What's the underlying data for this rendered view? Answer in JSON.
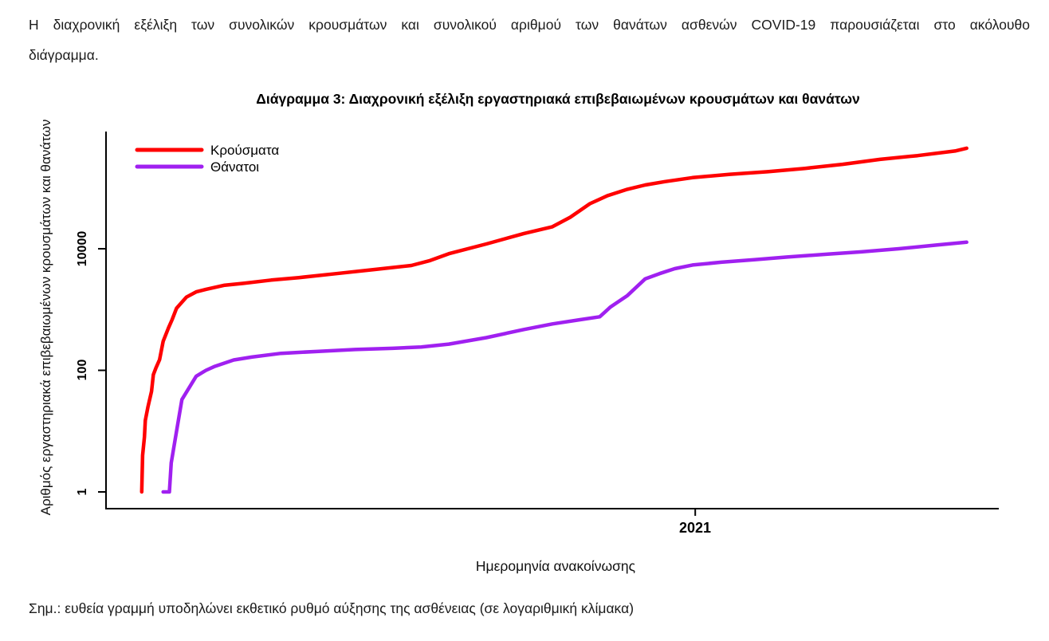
{
  "intro": {
    "line1": "Η διαχρονική εξέλιξη των συνολικών κρουσμάτων και συνολικού αριθμού των θανάτων ασθενών COVID-19 παρουσιάζεται στο ακόλουθο",
    "line2": "διάγραμμα."
  },
  "note": "Σημ.: ευθεία γραμμή υποδηλώνει εκθετικό ρυθμό αύξησης της ασθένειας (σε λογαριθμική κλίμακα)",
  "chart_data": {
    "type": "line",
    "title": "Διάγραμμα 3: Διαχρονική εξέλιξη εργαστηριακά επιβεβαιωμένων κρουσμάτων και θανάτων",
    "xlabel": "Ημερομηνία ανακοίνωσης",
    "ylabel": "Αριθμός εργαστηριακά επιβεβαιωμένων κρουσμάτων και θανάτων",
    "y_scale": "log10",
    "ylim": [
      1,
      700000
    ],
    "grid": false,
    "axis_color": "#000000",
    "y_ticks": [
      {
        "label": "1",
        "value": 1
      },
      {
        "label": "100",
        "value": 100
      },
      {
        "label": "10000",
        "value": 10000
      }
    ],
    "x_tick": {
      "label": "2021",
      "frac": 0.66
    },
    "legend": {
      "position": "top-left",
      "items": [
        {
          "label": "Κρούσματα",
          "color": "#ff0000"
        },
        {
          "label": "Θάνατοι",
          "color": "#a020f0"
        }
      ]
    },
    "series": [
      {
        "name": "Κρούσματα",
        "color": "#ff0000",
        "points": [
          [
            0.04,
            1
          ],
          [
            0.041,
            4
          ],
          [
            0.043,
            8
          ],
          [
            0.044,
            15
          ],
          [
            0.047,
            25
          ],
          [
            0.051,
            45
          ],
          [
            0.053,
            85
          ],
          [
            0.056,
            110
          ],
          [
            0.06,
            150
          ],
          [
            0.064,
            300
          ],
          [
            0.07,
            500
          ],
          [
            0.074,
            680
          ],
          [
            0.079,
            1050
          ],
          [
            0.09,
            1600
          ],
          [
            0.101,
            1950
          ],
          [
            0.112,
            2150
          ],
          [
            0.132,
            2500
          ],
          [
            0.154,
            2700
          ],
          [
            0.185,
            3050
          ],
          [
            0.216,
            3350
          ],
          [
            0.258,
            3900
          ],
          [
            0.3,
            4550
          ],
          [
            0.342,
            5300
          ],
          [
            0.363,
            6400
          ],
          [
            0.384,
            8300
          ],
          [
            0.426,
            12000
          ],
          [
            0.468,
            17800
          ],
          [
            0.5,
            23000
          ],
          [
            0.52,
            33000
          ],
          [
            0.542,
            55000
          ],
          [
            0.562,
            75000
          ],
          [
            0.584,
            95000
          ],
          [
            0.604,
            112000
          ],
          [
            0.626,
            127000
          ],
          [
            0.657,
            148000
          ],
          [
            0.699,
            168000
          ],
          [
            0.741,
            185000
          ],
          [
            0.783,
            210000
          ],
          [
            0.825,
            245000
          ],
          [
            0.867,
            295000
          ],
          [
            0.909,
            340000
          ],
          [
            0.951,
            405000
          ],
          [
            0.964,
            450000
          ]
        ]
      },
      {
        "name": "Θάνατοι",
        "color": "#a020f0",
        "points": [
          [
            0.064,
            1
          ],
          [
            0.071,
            1
          ],
          [
            0.073,
            3
          ],
          [
            0.079,
            10
          ],
          [
            0.085,
            33
          ],
          [
            0.101,
            80
          ],
          [
            0.112,
            100
          ],
          [
            0.121,
            115
          ],
          [
            0.143,
            148
          ],
          [
            0.163,
            165
          ],
          [
            0.196,
            190
          ],
          [
            0.238,
            205
          ],
          [
            0.279,
            220
          ],
          [
            0.321,
            230
          ],
          [
            0.353,
            242
          ],
          [
            0.384,
            270
          ],
          [
            0.426,
            345
          ],
          [
            0.468,
            470
          ],
          [
            0.5,
            580
          ],
          [
            0.531,
            680
          ],
          [
            0.553,
            760
          ],
          [
            0.565,
            1100
          ],
          [
            0.584,
            1700
          ],
          [
            0.604,
            3200
          ],
          [
            0.62,
            3900
          ],
          [
            0.637,
            4700
          ],
          [
            0.657,
            5400
          ],
          [
            0.689,
            6000
          ],
          [
            0.726,
            6600
          ],
          [
            0.763,
            7300
          ],
          [
            0.81,
            8200
          ],
          [
            0.846,
            8900
          ],
          [
            0.888,
            10000
          ],
          [
            0.93,
            11500
          ],
          [
            0.964,
            12800
          ]
        ]
      }
    ]
  }
}
